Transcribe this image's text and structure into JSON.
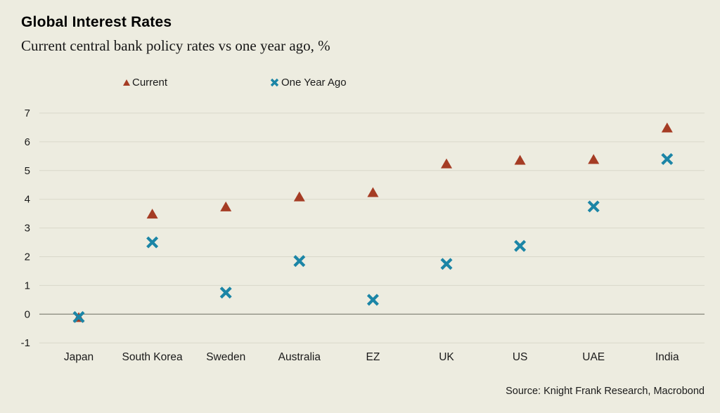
{
  "header": {
    "title": "Global Interest Rates",
    "subtitle": "Current central bank policy rates vs one year ago, %"
  },
  "legend": [
    {
      "label": "Current",
      "marker": "triangle-up",
      "color": "#a53c24"
    },
    {
      "label": "One Year Ago",
      "marker": "x-cross",
      "color": "#1b85a6"
    }
  ],
  "source": "Source: Knight Frank Research, Macrobond",
  "colors": {
    "background": "#edece0",
    "gridline": "#d9d8ca",
    "zero_line": "#8f8f83",
    "text": "#1a1a1a",
    "current_series": "#a53c24",
    "one_year_ago_series": "#1b85a6"
  },
  "chart_data": {
    "type": "scatter",
    "title": "Global Interest Rates",
    "subtitle": "Current central bank policy rates vs one year ago, %",
    "xlabel": "",
    "ylabel": "",
    "categories": [
      "Japan",
      "South Korea",
      "Sweden",
      "Australia",
      "EZ",
      "UK",
      "US",
      "UAE",
      "India"
    ],
    "series": [
      {
        "name": "Current",
        "marker": "triangle-up",
        "color": "#a53c24",
        "values": [
          -0.1,
          3.5,
          3.75,
          4.1,
          4.25,
          5.25,
          5.375,
          5.4,
          6.5
        ]
      },
      {
        "name": "One Year Ago",
        "marker": "x-cross",
        "color": "#1b85a6",
        "values": [
          -0.1,
          2.5,
          0.75,
          1.85,
          0.5,
          1.75,
          2.375,
          3.75,
          5.4
        ]
      }
    ],
    "ylim": [
      -1,
      7
    ],
    "yticks": [
      -1,
      0,
      1,
      2,
      3,
      4,
      5,
      6,
      7
    ],
    "grid": true,
    "legend_position": "top"
  }
}
